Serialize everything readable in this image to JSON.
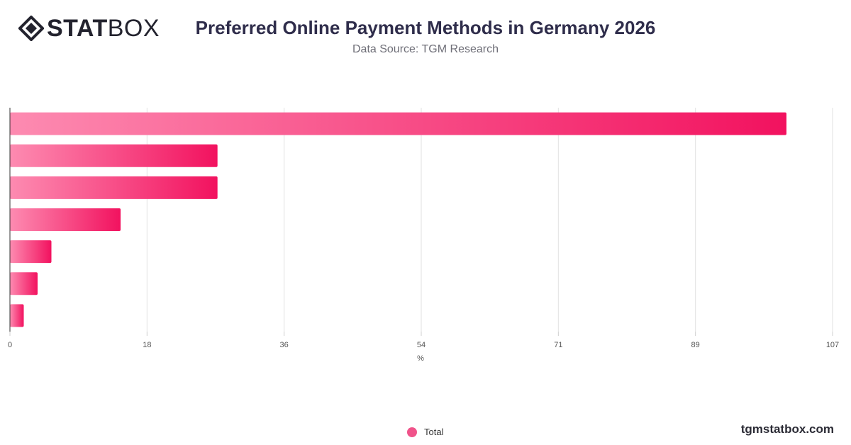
{
  "header": {
    "logo_bold": "STAT",
    "logo_light": "BOX",
    "title": "Preferred Online Payment Methods in Germany 2026",
    "subtitle": "Data Source: TGM Research"
  },
  "legend": {
    "label": "Total"
  },
  "footer": {
    "site": "tgmstatbox.com"
  },
  "colors": {
    "bar_start": "#fd8bb1",
    "bar_end": "#f2125f",
    "legend_dot": "#f0538a"
  },
  "chart_data": {
    "type": "bar",
    "orientation": "horizontal",
    "categories": [
      "",
      "",
      "",
      "",
      "",
      "",
      ""
    ],
    "series": [
      {
        "name": "Total",
        "values": [
          101,
          27,
          27,
          14.4,
          5.4,
          3.6,
          1.8
        ]
      }
    ],
    "xlim": [
      0,
      107
    ],
    "xticks": [
      "0",
      "18",
      "36",
      "54",
      "71",
      "89",
      "107"
    ],
    "xlabel": "%",
    "grid": true,
    "legend_position": "bottom"
  }
}
